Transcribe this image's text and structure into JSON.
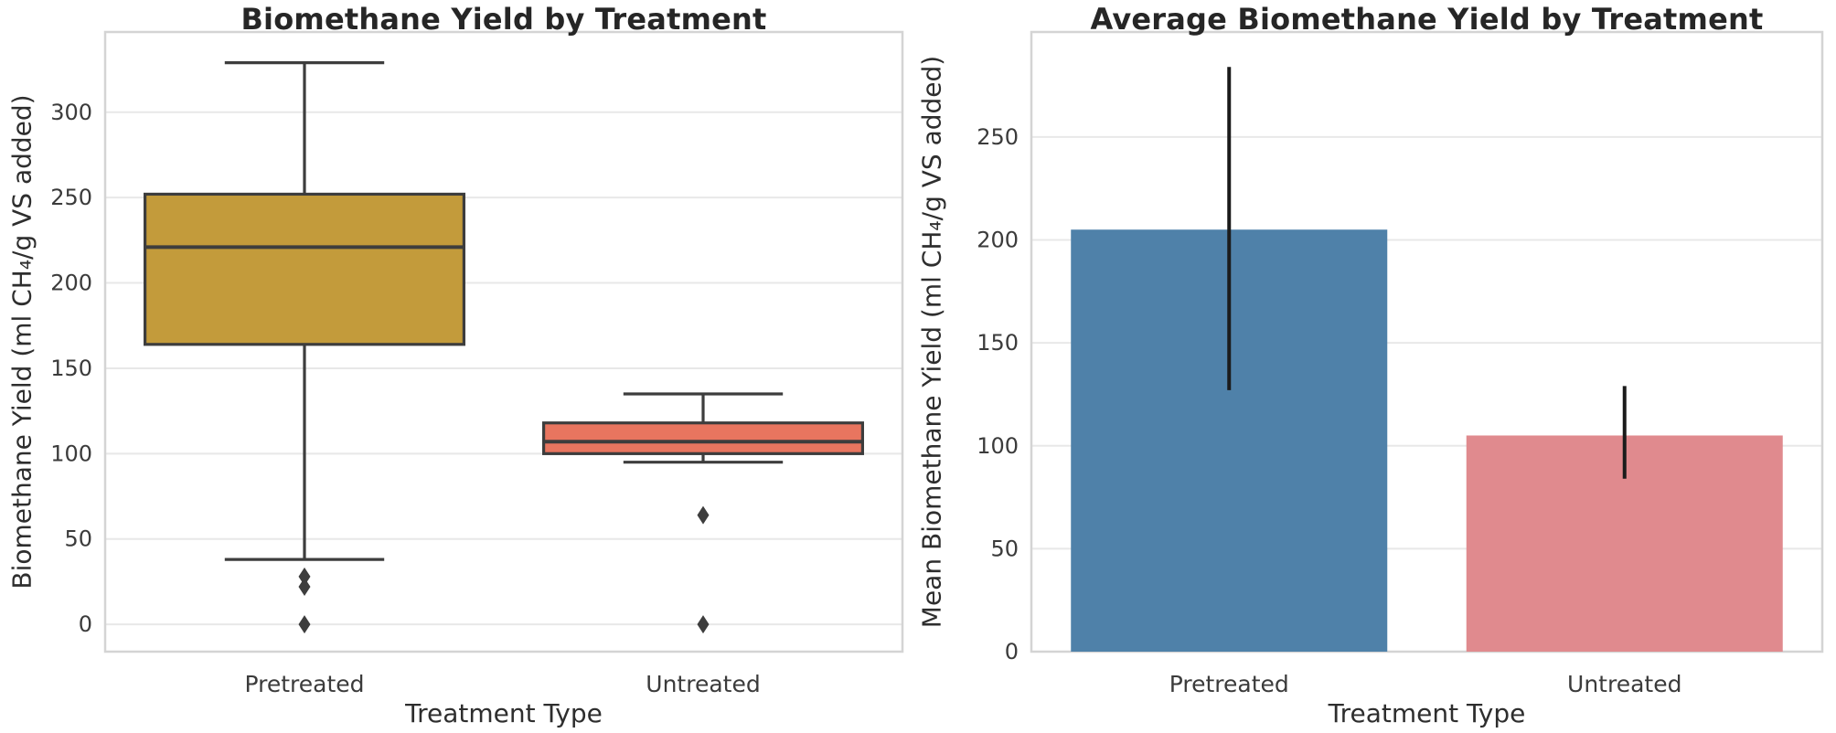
{
  "figure": {
    "background": "#ffffff",
    "grid_color": "#e8e8e8",
    "spine_color": "#d4d4d4",
    "text_color": "#2e2e2e",
    "box_edge_color": "#3d3d3d",
    "error_bar_color": "#1b1b1b"
  },
  "chart_data": [
    {
      "type": "box",
      "title": "Biomethane Yield by Treatment",
      "xlabel": "Treatment Type",
      "ylabel": "Biomethane Yield (ml CH₄/g VS added)",
      "categories": [
        "Pretreated",
        "Untreated"
      ],
      "yticks": [
        0,
        50,
        100,
        150,
        200,
        250,
        300
      ],
      "ylim": [
        -16,
        347
      ],
      "grid": true,
      "legend": "none",
      "series": [
        {
          "name": "Pretreated",
          "color": "#c39b3b",
          "whisker_low": 38,
          "q1": 164,
          "median": 221,
          "q3": 252,
          "whisker_high": 329,
          "outliers": [
            28,
            22,
            0
          ]
        },
        {
          "name": "Untreated",
          "color": "#e8755f",
          "whisker_low": 95,
          "q1": 100,
          "median": 107,
          "q3": 118,
          "whisker_high": 135,
          "outliers": [
            64,
            0
          ]
        }
      ]
    },
    {
      "type": "bar",
      "title": "Average Biomethane Yield by Treatment",
      "xlabel": "Treatment Type",
      "ylabel": "Mean Biomethane Yield (ml CH₄/g VS added)",
      "categories": [
        "Pretreated",
        "Untreated"
      ],
      "yticks": [
        0,
        50,
        100,
        150,
        200,
        250
      ],
      "ylim": [
        0,
        301
      ],
      "grid": true,
      "legend": "none",
      "series": [
        {
          "name": "Pretreated",
          "color": "#4f81a9",
          "mean": 205,
          "error_low": 127,
          "error_high": 284
        },
        {
          "name": "Untreated",
          "color": "#e08a8e",
          "mean": 105,
          "error_low": 84,
          "error_high": 129
        }
      ]
    }
  ]
}
